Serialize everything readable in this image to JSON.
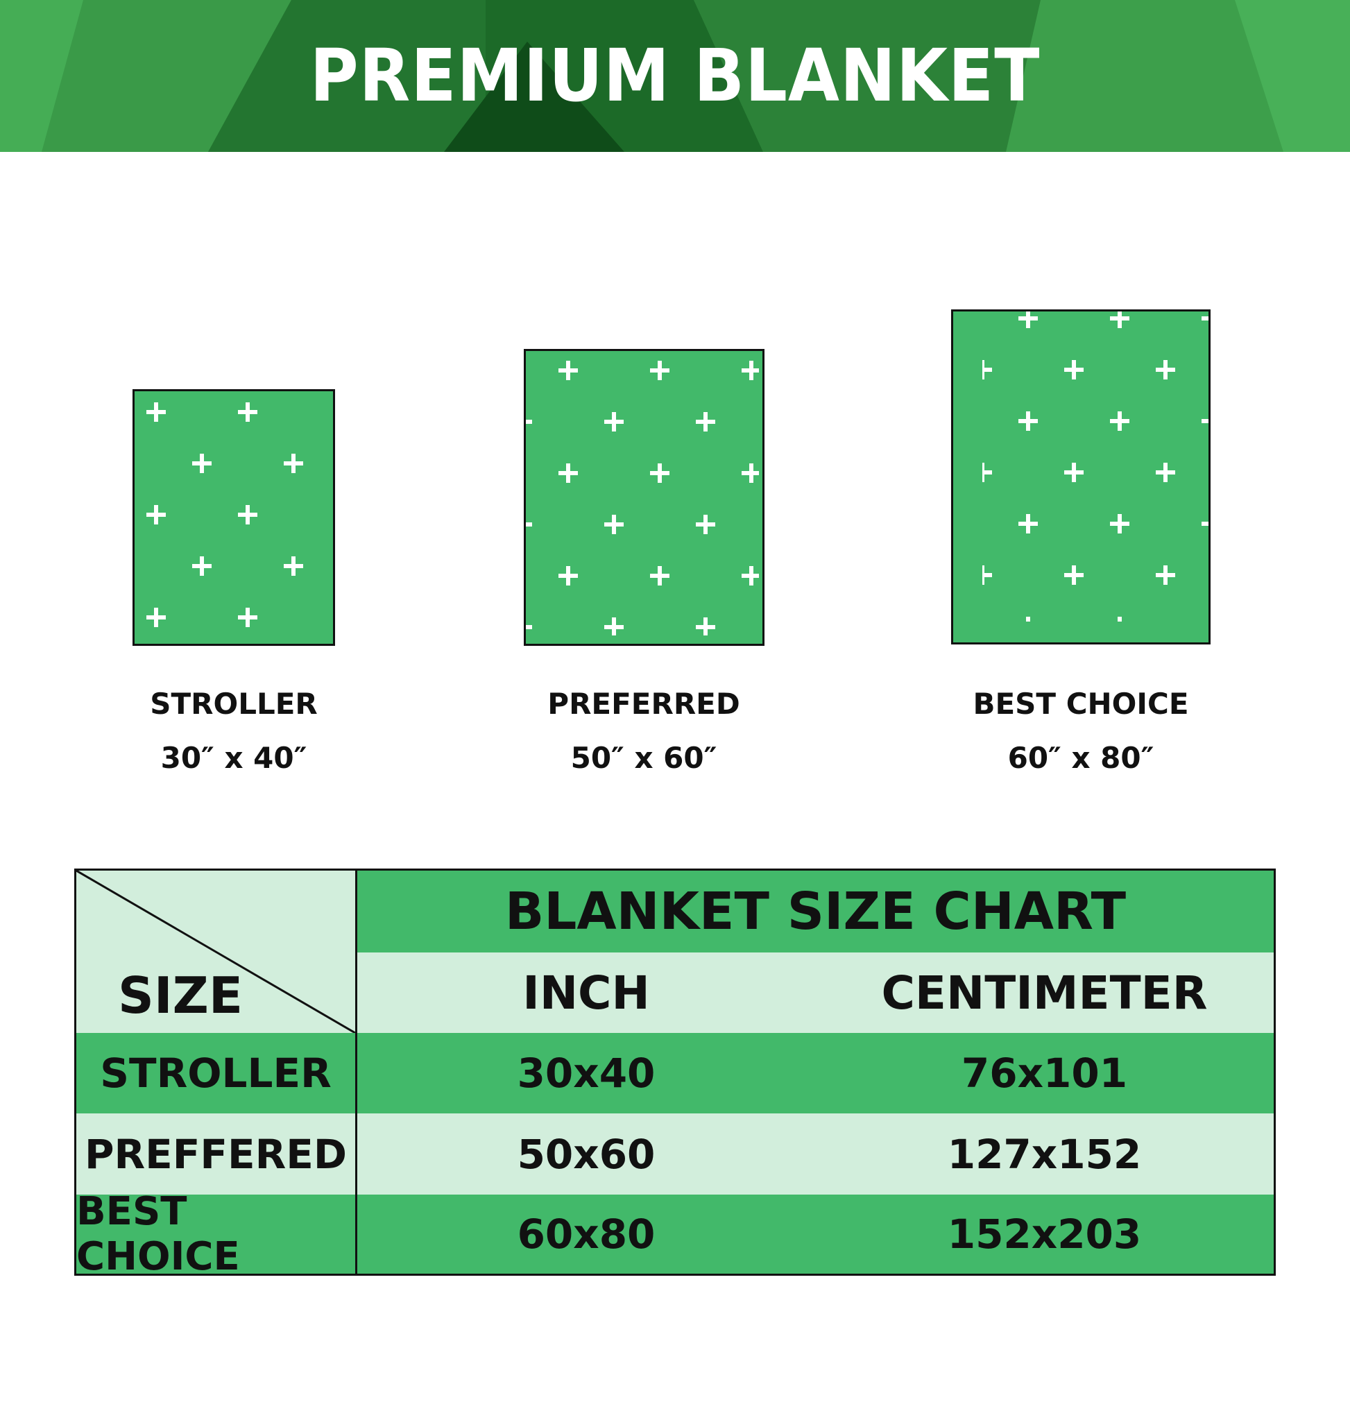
{
  "header": {
    "title": "PREMIUM BLANKET"
  },
  "colors": {
    "accent": "#42b96a",
    "light": "#d2eedc",
    "banner": "#2a7d36"
  },
  "blankets": [
    {
      "name": "STROLLER",
      "size": "30″ x 40″"
    },
    {
      "name": "PREFERRED",
      "size": "50″ x 60″"
    },
    {
      "name": "BEST CHOICE",
      "size": "60″ x 80″"
    }
  ],
  "table": {
    "title": "BLANKET SIZE CHART",
    "size_header": "SIZE",
    "columns": [
      "INCH",
      "CENTIMETER"
    ],
    "rows": [
      {
        "size": "STROLLER",
        "inch": "30x40",
        "cm": "76x101"
      },
      {
        "size": "PREFFERED",
        "inch": "50x60",
        "cm": "127x152"
      },
      {
        "size": "BEST CHOICE",
        "inch": "60x80",
        "cm": "152x203"
      }
    ]
  }
}
